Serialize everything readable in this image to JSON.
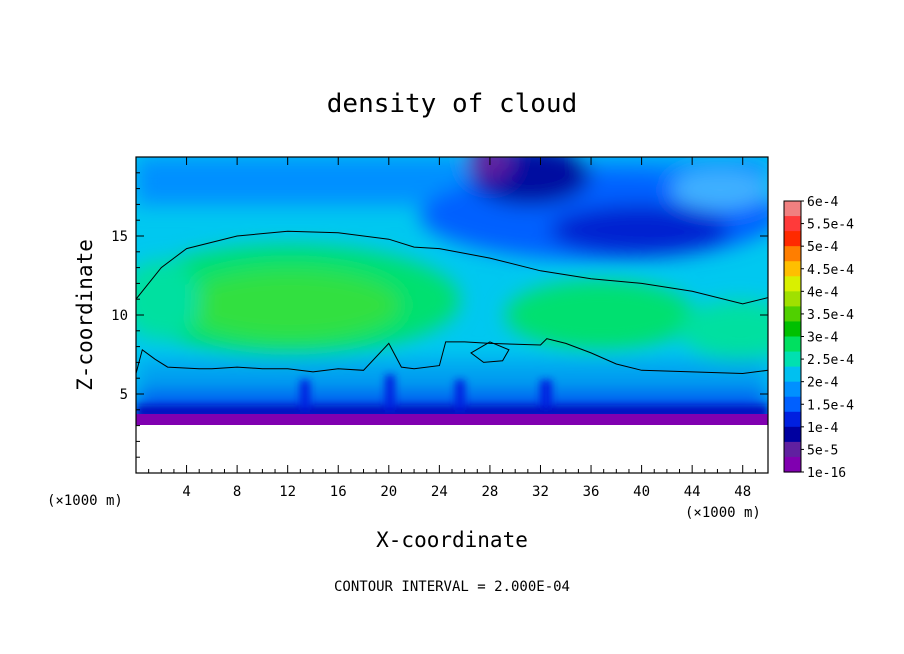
{
  "chart_data": {
    "type": "heatmap",
    "title": "density of cloud",
    "xlabel": "X-coordinate",
    "ylabel": "Z-coordinate",
    "x_unit": "(×1000 m)",
    "z_unit": "(×1000 m)",
    "xlim": [
      0,
      50
    ],
    "ylim": [
      0,
      20
    ],
    "x_ticks": [
      "4",
      "8",
      "12",
      "16",
      "20",
      "24",
      "28",
      "32",
      "36",
      "40",
      "44",
      "48"
    ],
    "y_ticks": [
      "5",
      "10",
      "15"
    ],
    "colorbar": {
      "labels": [
        "6e-4",
        "5.5e-4",
        "5e-4",
        "4.5e-4",
        "4e-4",
        "3.5e-4",
        "3e-4",
        "2.5e-4",
        "2e-4",
        "1.5e-4",
        "1e-4",
        "5e-5",
        "1e-16"
      ],
      "colors": [
        "#f08080",
        "#ff3a3a",
        "#ff2a00",
        "#ff7e00",
        "#ffbf00",
        "#d9f000",
        "#a0e000",
        "#50d000",
        "#00c000",
        "#00e060",
        "#00e0b0",
        "#00c0f0",
        "#0090ff",
        "#0060ff",
        "#0020e0",
        "#0000a0",
        "#6020a0",
        "#8000b0"
      ]
    },
    "contour_interval": "CONTOUR INTERVAL = 2.000E-04",
    "contour_level": 0.0002,
    "upper_contour_z": [
      [
        0,
        11.0
      ],
      [
        2,
        13.0
      ],
      [
        4,
        14.2
      ],
      [
        8,
        15.0
      ],
      [
        12,
        15.3
      ],
      [
        16,
        15.2
      ],
      [
        20,
        14.8
      ],
      [
        22,
        14.3
      ],
      [
        24,
        14.2
      ],
      [
        28,
        13.6
      ],
      [
        32,
        12.8
      ],
      [
        36,
        12.3
      ],
      [
        40,
        12.0
      ],
      [
        44,
        11.5
      ],
      [
        48,
        10.7
      ],
      [
        50,
        11.1
      ]
    ],
    "lower_contour_z": [
      [
        0,
        6.3
      ],
      [
        0.5,
        7.8
      ],
      [
        1.5,
        7.2
      ],
      [
        2.5,
        6.7
      ],
      [
        5,
        6.6
      ],
      [
        6,
        6.6
      ],
      [
        8,
        6.7
      ],
      [
        10,
        6.6
      ],
      [
        12,
        6.6
      ],
      [
        14,
        6.4
      ],
      [
        16,
        6.6
      ],
      [
        18,
        6.5
      ],
      [
        20,
        8.2
      ],
      [
        21,
        6.7
      ],
      [
        22,
        6.6
      ],
      [
        24,
        6.8
      ],
      [
        24.5,
        8.3
      ],
      [
        26,
        8.3
      ],
      [
        28,
        8.2
      ],
      [
        32,
        8.1
      ],
      [
        32.5,
        8.5
      ],
      [
        34,
        8.2
      ],
      [
        36,
        7.6
      ],
      [
        38,
        6.9
      ],
      [
        40,
        6.5
      ],
      [
        44,
        6.4
      ],
      [
        48,
        6.3
      ],
      [
        50,
        6.5
      ]
    ],
    "closed_contour_z": [
      [
        26.5,
        7.6
      ],
      [
        28,
        8.3
      ],
      [
        29.5,
        7.8
      ],
      [
        29,
        7.1
      ],
      [
        27.5,
        7.0
      ]
    ],
    "cloud_base_z": 3.2
  }
}
